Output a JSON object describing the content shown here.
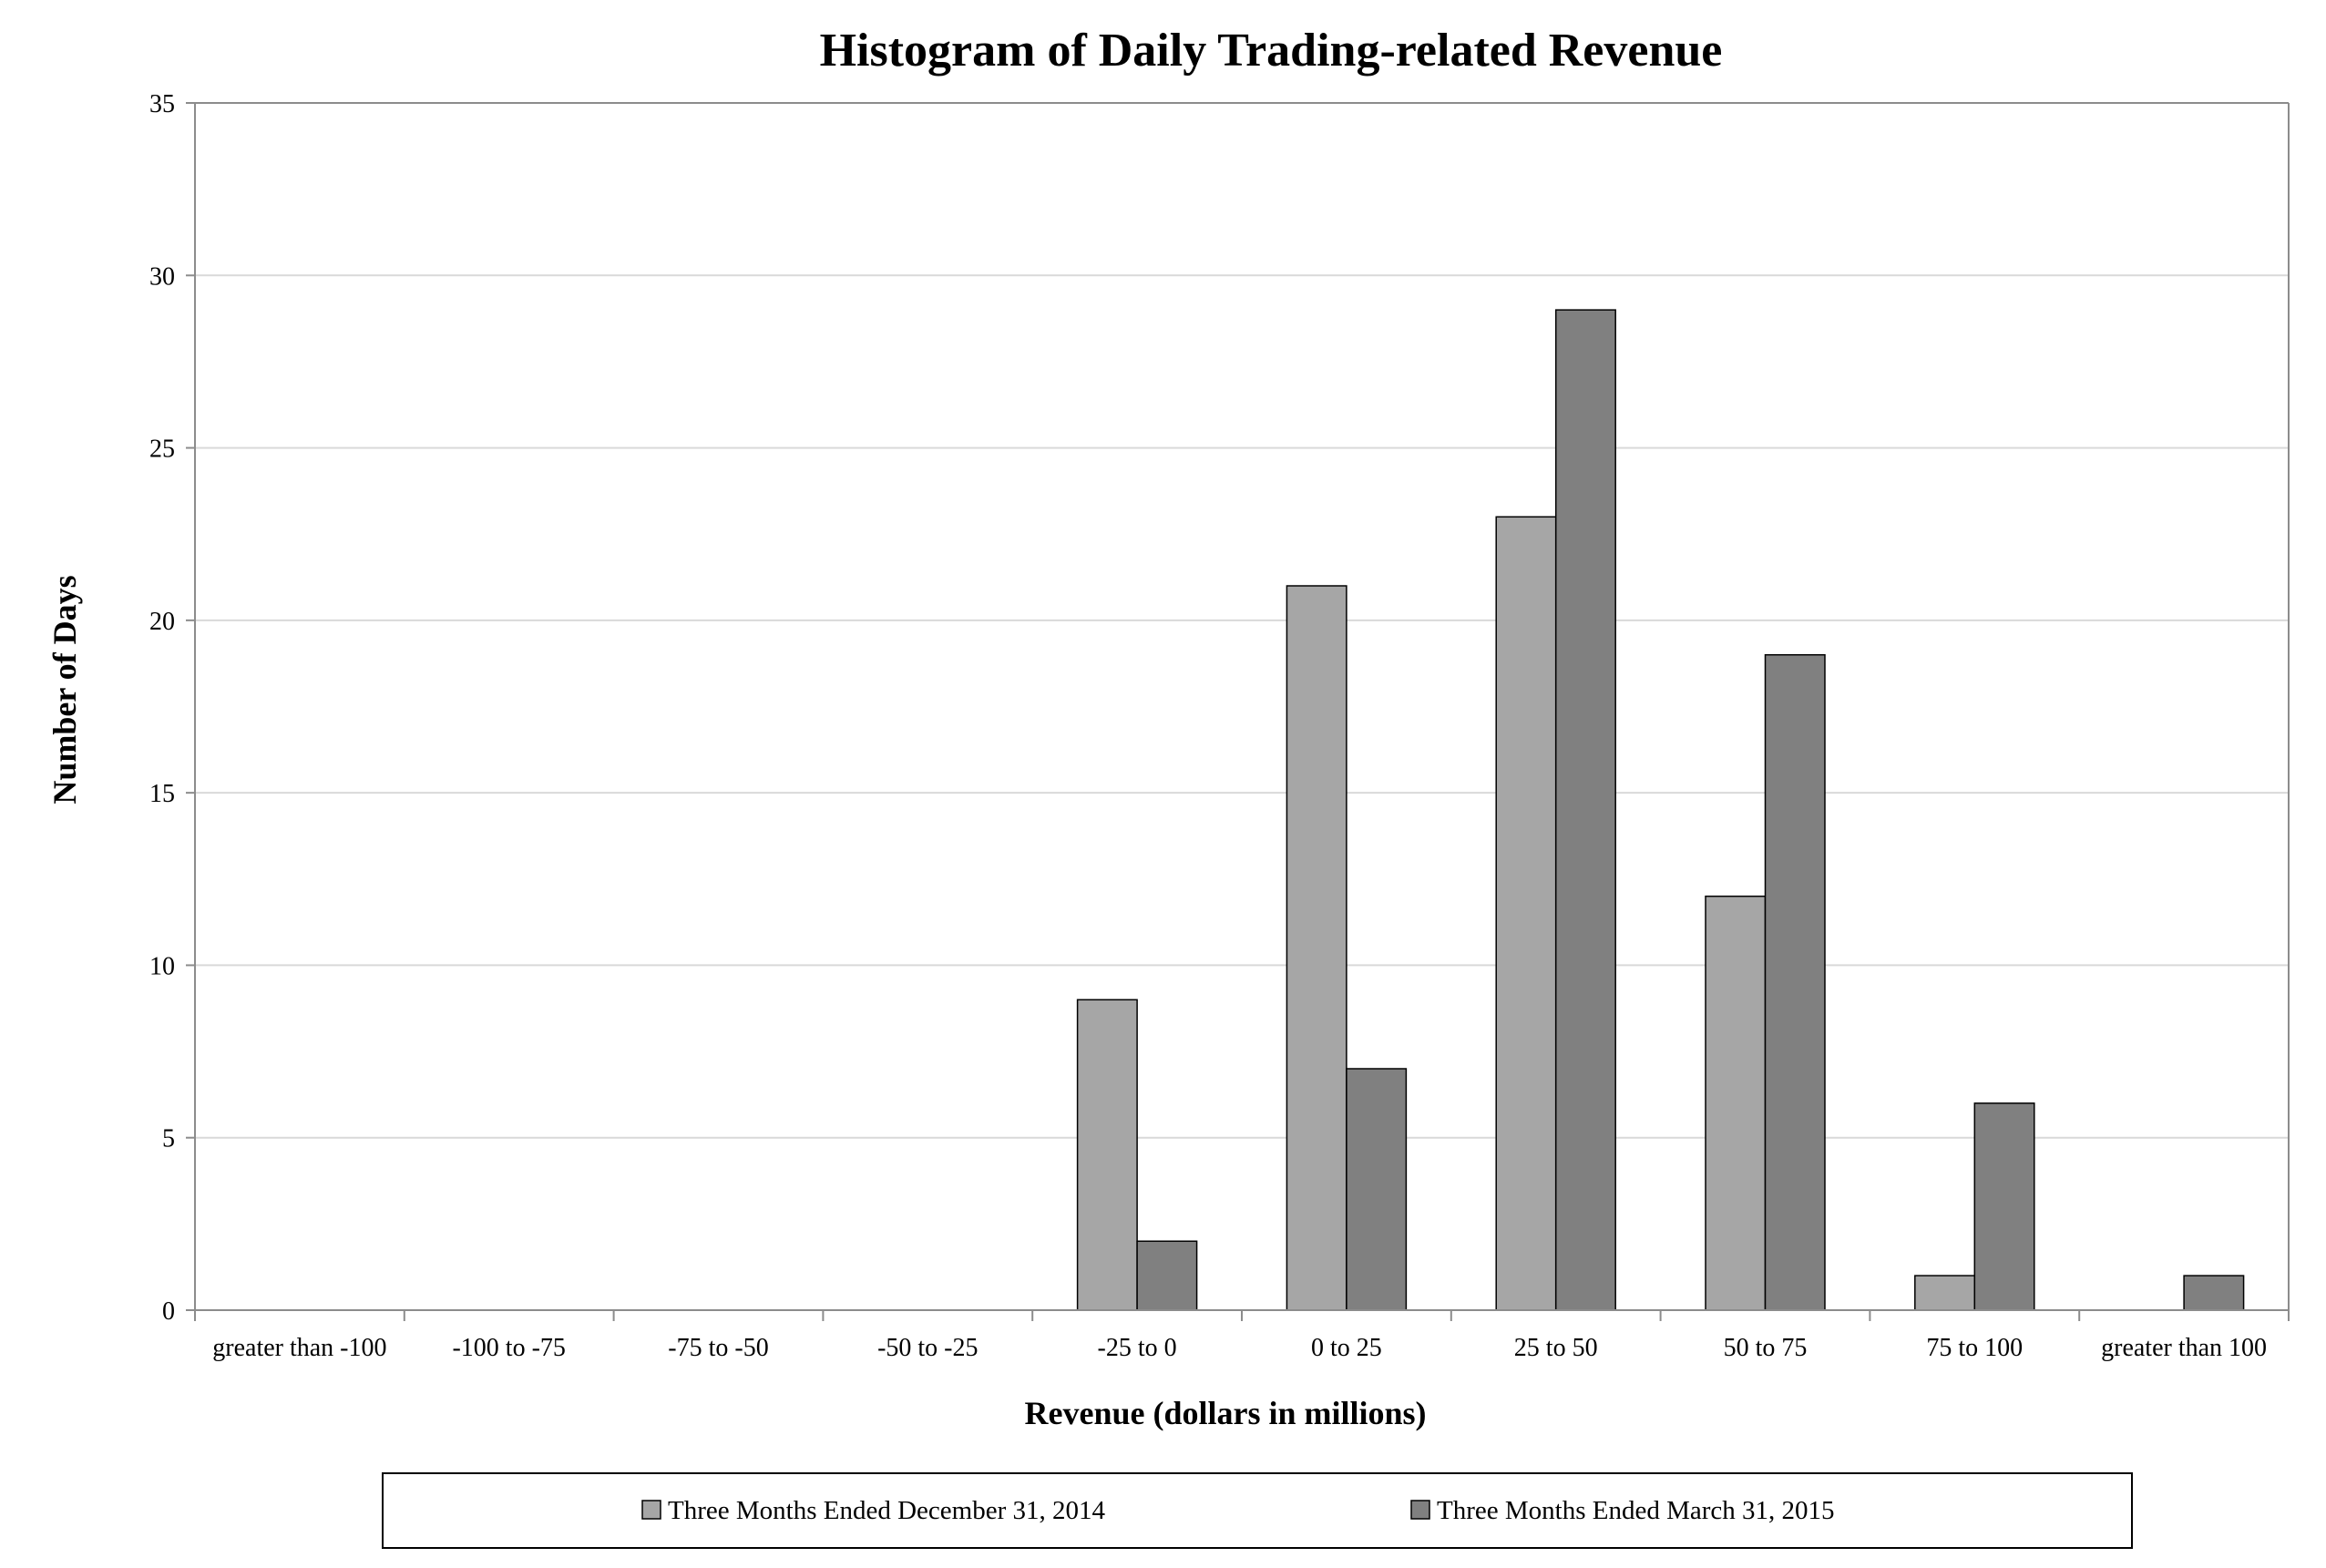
{
  "chart_data": {
    "type": "bar",
    "title": "Histogram of Daily Trading-related Revenue",
    "xlabel": "Revenue (dollars in millions)",
    "ylabel": "Number of Days",
    "ylim": [
      0,
      35
    ],
    "yticks": [
      "0",
      "5",
      "10",
      "15",
      "20",
      "25",
      "30",
      "35"
    ],
    "grid": true,
    "legend_position": "bottom",
    "categories": [
      "greater than -100",
      "-100 to -75",
      "-75 to -50",
      "-50 to -25",
      "-25 to 0",
      "0 to 25",
      "25 to 50",
      "50 to 75",
      "75 to 100",
      "greater than 100"
    ],
    "series": [
      {
        "name": "Three Months Ended December 31, 2014",
        "color": "#a6a6a6",
        "values": [
          0,
          0,
          0,
          0,
          9,
          21,
          23,
          12,
          1,
          0
        ]
      },
      {
        "name": "Three Months Ended March 31, 2015",
        "color": "#808080",
        "values": [
          0,
          0,
          0,
          0,
          2,
          7,
          29,
          19,
          6,
          1
        ]
      }
    ]
  }
}
